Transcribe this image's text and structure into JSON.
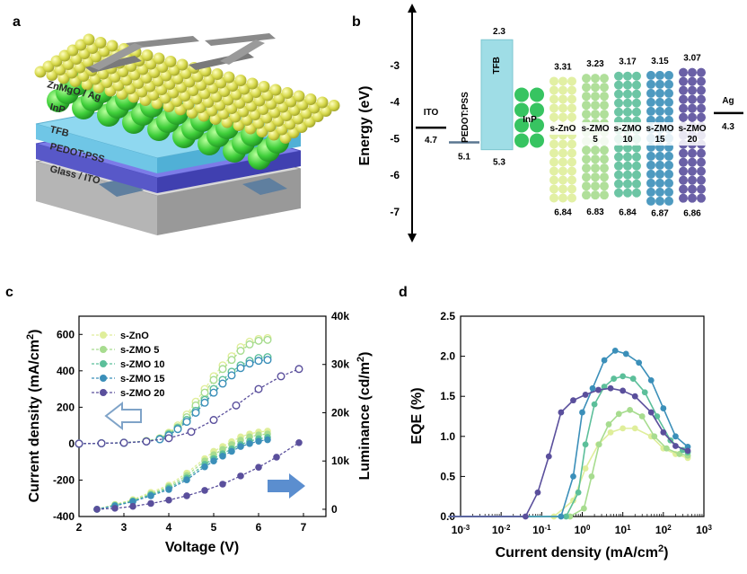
{
  "panels": {
    "a": {
      "label": "a",
      "layers": [
        "ZnMgO / Ag",
        "InP",
        "TFB",
        "PEDOT:PSS",
        "Glass / ITO"
      ]
    },
    "b": {
      "label": "b"
    },
    "c": {
      "label": "c"
    },
    "d": {
      "label": "d"
    }
  },
  "colors": {
    "s-ZnO": "#dfee9a",
    "s-ZMO 5": "#a7dc8f",
    "s-ZMO 10": "#5cbf9a",
    "s-ZMO 15": "#3b8fb9",
    "s-ZMO 20": "#5a4f9c"
  },
  "chart_data": [
    {
      "id": "b",
      "type": "energy-level-diagram",
      "ylabel": "Energy (eV)",
      "ylim": [
        -7.6,
        -1.7
      ],
      "yticks": [
        -3,
        -4,
        -5,
        -6,
        -7
      ],
      "materials": [
        {
          "name": "ITO",
          "work_function": 4.7,
          "label_top": "ITO",
          "label_bottom": "4.7"
        },
        {
          "name": "PEDOT:PSS",
          "work_function": 5.1,
          "label_bottom": "5.1"
        },
        {
          "name": "TFB",
          "lumo": 2.3,
          "homo": 5.3,
          "label_top": "2.3",
          "label_bottom": "5.3"
        },
        {
          "name": "InP",
          "label": "InP"
        },
        {
          "name": "s-ZnO",
          "cb": 3.31,
          "vb": 6.84,
          "label": "s-ZnO",
          "top": "3.31",
          "bottom": "6.84"
        },
        {
          "name": "s-ZMO 5",
          "cb": 3.23,
          "vb": 6.83,
          "label": "s-ZMO",
          "label2": "5",
          "top": "3.23",
          "bottom": "6.83"
        },
        {
          "name": "s-ZMO 10",
          "cb": 3.17,
          "vb": 6.84,
          "label": "s-ZMO",
          "label2": "10",
          "top": "3.17",
          "bottom": "6.84"
        },
        {
          "name": "s-ZMO 15",
          "cb": 3.15,
          "vb": 6.87,
          "label": "s-ZMO",
          "label2": "15",
          "top": "3.15",
          "bottom": "6.87"
        },
        {
          "name": "s-ZMO 20",
          "cb": 3.07,
          "vb": 6.86,
          "label": "s-ZMO",
          "label2": "20",
          "top": "3.07",
          "bottom": "6.86"
        },
        {
          "name": "Ag",
          "work_function": 4.3,
          "label_top": "Ag",
          "label_bottom": "4.3"
        }
      ]
    },
    {
      "id": "c",
      "type": "line",
      "xlabel": "Voltage (V)",
      "ylabel": "Current density (mA/cm²)",
      "ylabel_base": "Current density (mA/cm",
      "ylabel_sup": "2",
      "ylabel_end": ")",
      "y2label_base": "Luminance (cd/m",
      "y2label_sup": "2",
      "y2label_end": ")",
      "xlim": [
        2,
        7.5
      ],
      "ylim": [
        -400,
        700
      ],
      "y2lim": [
        -1500,
        40000
      ],
      "xticks": [
        "2",
        "3",
        "4",
        "5",
        "6",
        "7"
      ],
      "yticks": [
        "600",
        "400",
        "200",
        "0",
        "-200",
        "-400"
      ],
      "y2ticks": [
        "0",
        "10k",
        "20k",
        "30k",
        "40k"
      ],
      "legend": [
        "s-ZnO",
        "s-ZMO 5",
        "s-ZMO 10",
        "s-ZMO 15",
        "s-ZMO 20"
      ],
      "current_series": [
        {
          "name": "s-ZnO",
          "x": [
            2.0,
            2.5,
            3.0,
            3.5,
            3.8,
            4.0,
            4.2,
            4.4,
            4.6,
            4.8,
            5.0,
            5.2,
            5.4,
            5.6,
            5.8,
            6.0,
            6.2
          ],
          "y": [
            0,
            2,
            5,
            15,
            30,
            60,
            100,
            160,
            230,
            300,
            370,
            430,
            480,
            530,
            560,
            575,
            580
          ]
        },
        {
          "name": "s-ZMO 5",
          "x": [
            2.0,
            2.5,
            3.0,
            3.5,
            3.8,
            4.0,
            4.2,
            4.4,
            4.6,
            4.8,
            5.0,
            5.2,
            5.4,
            5.6,
            5.8,
            6.0,
            6.2
          ],
          "y": [
            0,
            2,
            5,
            14,
            28,
            55,
            90,
            145,
            210,
            280,
            350,
            410,
            460,
            510,
            545,
            565,
            570
          ]
        },
        {
          "name": "s-ZMO 10",
          "x": [
            2.0,
            2.5,
            3.0,
            3.5,
            3.8,
            4.0,
            4.2,
            4.4,
            4.6,
            4.8,
            5.0,
            5.2,
            5.4,
            5.6,
            5.8,
            6.0,
            6.2
          ],
          "y": [
            0,
            2,
            5,
            13,
            26,
            50,
            85,
            130,
            180,
            240,
            300,
            350,
            395,
            430,
            455,
            470,
            475
          ]
        },
        {
          "name": "s-ZMO 15",
          "x": [
            2.0,
            2.5,
            3.0,
            3.5,
            3.8,
            4.0,
            4.2,
            4.4,
            4.6,
            4.8,
            5.0,
            5.2,
            5.4,
            5.6,
            5.8,
            6.0,
            6.2
          ],
          "y": [
            0,
            2,
            5,
            12,
            24,
            45,
            80,
            120,
            170,
            225,
            280,
            330,
            375,
            415,
            440,
            455,
            460
          ]
        },
        {
          "name": "s-ZMO 20",
          "x": [
            2.0,
            2.5,
            3.0,
            3.5,
            4.0,
            4.5,
            5.0,
            5.5,
            6.0,
            6.5,
            6.9
          ],
          "y": [
            0,
            2,
            5,
            12,
            30,
            65,
            130,
            210,
            300,
            370,
            410
          ]
        }
      ],
      "luminance_series": [
        {
          "name": "s-ZnO",
          "x": [
            2.4,
            2.8,
            3.2,
            3.6,
            4.0,
            4.4,
            4.8,
            5.0,
            5.2,
            5.4,
            5.6,
            5.8,
            6.0,
            6.2
          ],
          "y": [
            0,
            1000,
            2000,
            3500,
            5000,
            7500,
            10500,
            12000,
            13000,
            14000,
            15000,
            15600,
            16000,
            16200
          ]
        },
        {
          "name": "s-ZMO 5",
          "x": [
            2.4,
            2.8,
            3.2,
            3.6,
            4.0,
            4.4,
            4.8,
            5.0,
            5.2,
            5.4,
            5.6,
            5.8,
            6.0,
            6.2
          ],
          "y": [
            0,
            900,
            1800,
            3200,
            4700,
            7000,
            10000,
            11300,
            12400,
            13400,
            14300,
            15000,
            15400,
            15600
          ]
        },
        {
          "name": "s-ZMO 10",
          "x": [
            2.4,
            2.8,
            3.2,
            3.6,
            4.0,
            4.4,
            4.8,
            5.0,
            5.2,
            5.4,
            5.6,
            5.8,
            6.0,
            6.2
          ],
          "y": [
            0,
            800,
            1700,
            3000,
            4400,
            6500,
            9300,
            10500,
            11500,
            12500,
            13400,
            14100,
            14600,
            14900
          ]
        },
        {
          "name": "s-ZMO 15",
          "x": [
            2.4,
            2.8,
            3.2,
            3.6,
            4.0,
            4.4,
            4.8,
            5.0,
            5.2,
            5.4,
            5.6,
            5.8,
            6.0,
            6.2
          ],
          "y": [
            0,
            700,
            1600,
            2800,
            4100,
            6100,
            8800,
            10000,
            11000,
            12000,
            13000,
            13600,
            14100,
            14400
          ]
        },
        {
          "name": "s-ZMO 20",
          "x": [
            2.4,
            2.8,
            3.2,
            3.6,
            4.0,
            4.4,
            4.8,
            5.2,
            5.6,
            6.0,
            6.4,
            6.9
          ],
          "y": [
            0,
            200,
            600,
            1200,
            1900,
            2800,
            3900,
            5200,
            6900,
            8700,
            10800,
            13800
          ]
        }
      ]
    },
    {
      "id": "d",
      "type": "line",
      "xscale": "log",
      "xlabel_base": "Current density (mA/cm",
      "xlabel_sup": "2",
      "xlabel_end": ")",
      "ylabel": "EQE (%)",
      "xlim_exp": [
        -3,
        3
      ],
      "ylim": [
        0,
        2.5
      ],
      "xticks_exp": [
        "-3",
        "-2",
        "-1",
        "0",
        "1",
        "2",
        "3"
      ],
      "tick_base": "10",
      "yticks": [
        "0.0",
        "0.5",
        "1.0",
        "1.5",
        "2.0",
        "2.5"
      ],
      "series": [
        {
          "name": "s-ZnO",
          "x": [
            0.2,
            0.6,
            1.2,
            2.5,
            5,
            10,
            20,
            50,
            100,
            200,
            400
          ],
          "y": [
            0,
            0.2,
            0.6,
            0.9,
            1.05,
            1.1,
            1.1,
            1.0,
            0.85,
            0.78,
            0.73
          ]
        },
        {
          "name": "s-ZMO 5",
          "x": [
            0.5,
            1.1,
            1.7,
            2.6,
            4.5,
            8,
            15,
            30,
            60,
            120,
            250,
            400
          ],
          "y": [
            0,
            0.1,
            0.5,
            0.9,
            1.15,
            1.28,
            1.33,
            1.25,
            1.0,
            0.85,
            0.78,
            0.76
          ]
        },
        {
          "name": "s-ZMO 10",
          "x": [
            0.4,
            0.8,
            1.2,
            2.0,
            3.5,
            6,
            10,
            18,
            35,
            70,
            150,
            300,
            400
          ],
          "y": [
            0,
            0.3,
            0.9,
            1.4,
            1.62,
            1.72,
            1.75,
            1.72,
            1.55,
            1.25,
            0.95,
            0.83,
            0.8
          ]
        },
        {
          "name": "s-ZMO 15",
          "x": [
            0.3,
            0.6,
            1.0,
            1.8,
            3.5,
            6.5,
            12,
            25,
            50,
            100,
            200,
            400
          ],
          "y": [
            0,
            0.5,
            1.3,
            1.6,
            1.95,
            2.07,
            2.03,
            1.92,
            1.7,
            1.35,
            1.0,
            0.87
          ]
        },
        {
          "name": "s-ZMO 20",
          "x": [
            0.04,
            0.08,
            0.15,
            0.3,
            0.6,
            1.2,
            2.5,
            5,
            10,
            20,
            50,
            100,
            200,
            400
          ],
          "y": [
            0,
            0.3,
            0.75,
            1.3,
            1.45,
            1.52,
            1.58,
            1.6,
            1.57,
            1.5,
            1.3,
            1.05,
            0.88,
            0.82
          ]
        }
      ]
    }
  ]
}
